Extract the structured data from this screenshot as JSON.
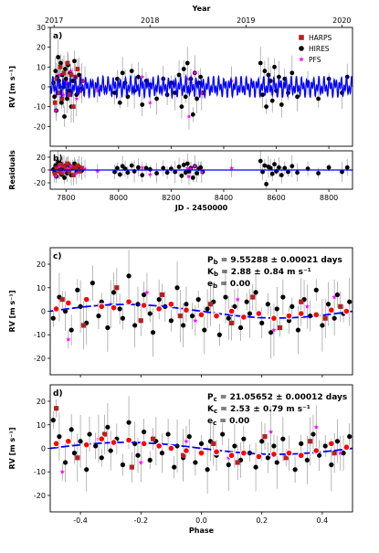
{
  "chart_data": [
    {
      "panel_label": "a)",
      "type": "line+scatter",
      "top_axis_label": "Year",
      "top_ticks": [
        "2017",
        "2018",
        "2019",
        "2020"
      ],
      "top_tick_positions_jd": [
        7754.5,
        8119.5,
        8484.5,
        8849.5
      ],
      "ylabel": "RV [m s⁻¹]",
      "xlim": [
        7740,
        8890
      ],
      "ylim": [
        -30,
        30
      ],
      "yticks": [
        -20,
        -10,
        0,
        10,
        20,
        30
      ],
      "legend": [
        "HARPS",
        "HIRES",
        "PFS"
      ],
      "legend_position": "top-right",
      "model": {
        "color": "#0000ff",
        "periods_days": [
          9.55288,
          21.05652
        ],
        "amplitudes_ms": [
          2.88,
          2.53
        ]
      },
      "series_points": [
        {
          "name": "HIRES",
          "x": [
            7752,
            7756,
            7760,
            7763,
            7767,
            7770,
            7773,
            7776,
            7780,
            7783,
            7786,
            7790,
            7794,
            7797,
            7800,
            7804,
            7808,
            7812,
            7816,
            7820,
            7826,
            7832,
            7840,
            7850,
            7860,
            7985,
            7995,
            8005,
            8015,
            8025,
            8035,
            8050,
            8060,
            8075,
            8090,
            8105,
            8120,
            8145,
            8170,
            8185,
            8200,
            8215,
            8230,
            8240,
            8248,
            8255,
            8262,
            8268,
            8275,
            8283,
            8290,
            8298,
            8305,
            8312,
            8320,
            8540,
            8548,
            8556,
            8562,
            8570,
            8578,
            8585,
            8593,
            8600,
            8610,
            8620,
            8632,
            8645,
            8660,
            8680,
            8720,
            8760,
            8800,
            8850,
            8870
          ],
          "y": [
            2,
            -5,
            8,
            -12,
            5,
            15,
            3,
            -3,
            12,
            -8,
            6,
            0,
            -15,
            9,
            4,
            -6,
            11,
            -2,
            7,
            -10,
            3,
            13,
            -4,
            6,
            -1,
            -3,
            4,
            -8,
            7,
            2,
            -5,
            8,
            -2,
            5,
            -9,
            3,
            1,
            -6,
            4,
            -4,
            2,
            -3,
            6,
            -10,
            9,
            -5,
            12,
            -2,
            4,
            -14,
            7,
            -6,
            2,
            5,
            -3,
            12,
            -4,
            8,
            -10,
            6,
            3,
            -7,
            10,
            -2,
            5,
            -9,
            4,
            -3,
            7,
            -5,
            2,
            -6,
            4,
            -3,
            5
          ]
        },
        {
          "name": "HARPS",
          "x": [
            7758,
            7764,
            7771,
            7778,
            7785,
            7792,
            7799,
            7806,
            7813,
            7820,
            7828,
            7836,
            7844,
            7852,
            7860
          ],
          "y": [
            -8,
            4,
            -3,
            10,
            -6,
            7,
            2,
            12,
            -4,
            6,
            -10,
            5,
            9,
            -2,
            3
          ]
        },
        {
          "name": "PFS",
          "x": [
            7762,
            7775,
            7790,
            7805,
            7818,
            7840,
            7872,
            7920,
            8090,
            8120,
            8262,
            8268,
            8275,
            8290,
            8316,
            8430
          ],
          "y": [
            -12,
            6,
            -4,
            2,
            8,
            -6,
            3,
            -2,
            5,
            -8,
            4,
            -15,
            2,
            7,
            -3,
            3
          ]
        }
      ]
    },
    {
      "panel_label": "b)",
      "type": "scatter",
      "xlabel": "JD - 2450000",
      "ylabel": "Residuals",
      "xlim": [
        7740,
        8890
      ],
      "ylim": [
        -30,
        30
      ],
      "yticks": [
        -20,
        0,
        20
      ],
      "xticks": [
        7800,
        8000,
        8200,
        8400,
        8600,
        8800
      ],
      "series_points": [
        {
          "name": "HIRES",
          "x": [
            7752,
            7756,
            7760,
            7763,
            7767,
            7770,
            7773,
            7776,
            7780,
            7783,
            7786,
            7790,
            7794,
            7797,
            7800,
            7804,
            7808,
            7812,
            7816,
            7820,
            7826,
            7832,
            7840,
            7850,
            7860,
            7985,
            7995,
            8005,
            8015,
            8025,
            8035,
            8050,
            8060,
            8075,
            8090,
            8105,
            8120,
            8145,
            8170,
            8185,
            8200,
            8215,
            8230,
            8240,
            8248,
            8255,
            8262,
            8268,
            8275,
            8283,
            8290,
            8298,
            8305,
            8312,
            8320,
            8540,
            8548,
            8556,
            8562,
            8570,
            8578,
            8585,
            8593,
            8600,
            8610,
            8620,
            8632,
            8645,
            8660,
            8680,
            8720,
            8760,
            8800,
            8850,
            8870
          ],
          "y": [
            1,
            -4,
            7,
            -10,
            4,
            12,
            2,
            -3,
            10,
            -7,
            5,
            0,
            -12,
            7,
            3,
            -5,
            9,
            -2,
            6,
            -8,
            3,
            10,
            -3,
            5,
            -1,
            -3,
            3,
            -7,
            6,
            2,
            -4,
            7,
            -2,
            4,
            -8,
            3,
            1,
            -5,
            3,
            -4,
            2,
            -3,
            5,
            -9,
            8,
            -4,
            10,
            -2,
            3,
            -12,
            6,
            -5,
            2,
            4,
            -3,
            14,
            -3,
            7,
            -22,
            5,
            3,
            -6,
            9,
            -2,
            4,
            -8,
            3,
            -3,
            6,
            -4,
            2,
            -5,
            4,
            -3,
            4
          ]
        },
        {
          "name": "HARPS",
          "x": [
            7758,
            7764,
            7771,
            7778,
            7785,
            7792,
            7799,
            7806,
            7813,
            7820,
            7828,
            7836,
            7844,
            7852,
            7860
          ],
          "y": [
            -6,
            3,
            -2,
            8,
            -5,
            6,
            2,
            10,
            -3,
            5,
            -8,
            4,
            7,
            -2,
            3
          ]
        },
        {
          "name": "PFS",
          "x": [
            7762,
            7775,
            7790,
            7805,
            7818,
            7840,
            7872,
            7920,
            8090,
            8120,
            8262,
            8268,
            8275,
            8290,
            8316,
            8430
          ],
          "y": [
            -10,
            5,
            -3,
            2,
            6,
            -5,
            2,
            -2,
            4,
            -7,
            3,
            -10,
            2,
            6,
            -3,
            3
          ]
        }
      ]
    },
    {
      "panel_label": "c)",
      "type": "phase-fold",
      "ylabel": "RV [m s⁻¹]",
      "xlim": [
        -0.5,
        0.5
      ],
      "ylim": [
        -27,
        27
      ],
      "yticks": [
        -20,
        -10,
        0,
        10,
        20
      ],
      "annotation": [
        "P_b = 9.55288 ± 0.00021 days",
        "K_b = 2.88 ± 0.84 m s⁻¹",
        "e_b = 0.00"
      ],
      "model": {
        "amplitude": 2.88,
        "phase_peak": -0.25
      },
      "binned": {
        "x": [
          -0.48,
          -0.44,
          -0.38,
          -0.33,
          -0.29,
          -0.24,
          -0.19,
          -0.14,
          -0.1,
          -0.05,
          0.0,
          0.05,
          0.1,
          0.14,
          0.19,
          0.24,
          0.29,
          0.33,
          0.38,
          0.43,
          0.48
        ],
        "y": [
          1.0,
          3.5,
          5.0,
          2.0,
          1.5,
          4.0,
          2.5,
          1.0,
          3.0,
          0.5,
          -1.5,
          -2.0,
          0.0,
          -2.5,
          -1.0,
          -3.0,
          -2.0,
          -1.0,
          -1.5,
          0.5,
          0.0
        ]
      },
      "series_points": [
        {
          "name": "HIRES",
          "x": [
            -0.49,
            -0.47,
            -0.45,
            -0.43,
            -0.41,
            -0.4,
            -0.38,
            -0.36,
            -0.34,
            -0.33,
            -0.31,
            -0.29,
            -0.27,
            -0.26,
            -0.24,
            -0.22,
            -0.21,
            -0.19,
            -0.17,
            -0.16,
            -0.14,
            -0.12,
            -0.1,
            -0.08,
            -0.06,
            -0.05,
            -0.03,
            -0.01,
            0.01,
            0.02,
            0.04,
            0.06,
            0.08,
            0.09,
            0.11,
            0.13,
            0.15,
            0.16,
            0.18,
            0.2,
            0.22,
            0.23,
            0.25,
            0.27,
            0.29,
            0.3,
            0.32,
            0.34,
            0.36,
            0.38,
            0.4,
            0.42,
            0.44,
            0.45,
            0.47,
            0.49
          ],
          "y": [
            -3,
            6,
            0,
            -8,
            9,
            2,
            -5,
            12,
            -2,
            4,
            -7,
            8,
            1,
            -3,
            15,
            -6,
            3,
            7,
            -1,
            -9,
            5,
            2,
            -4,
            10,
            -6,
            3,
            -2,
            5,
            -8,
            1,
            4,
            -10,
            6,
            -3,
            2,
            -7,
            4,
            -1,
            8,
            -5,
            3,
            -9,
            1,
            6,
            -4,
            2,
            -8,
            5,
            -2,
            9,
            -6,
            3,
            -3,
            7,
            -1,
            4
          ]
        },
        {
          "name": "HARPS",
          "x": [
            -0.46,
            -0.39,
            -0.28,
            -0.2,
            -0.13,
            -0.07,
            0.03,
            0.1,
            0.17,
            0.26,
            0.33,
            0.41,
            0.46
          ],
          "y": [
            5,
            -6,
            10,
            -4,
            7,
            -2,
            3,
            -5,
            6,
            -7,
            4,
            -3,
            2
          ]
        },
        {
          "name": "PFS",
          "x": [
            -0.44,
            -0.3,
            -0.18,
            -0.02,
            0.12,
            0.24,
            0.35,
            0.44
          ],
          "y": [
            -12,
            3,
            8,
            -4,
            5,
            -8,
            2,
            6
          ]
        }
      ]
    },
    {
      "panel_label": "d)",
      "type": "phase-fold",
      "xlabel": "Phase",
      "ylabel": "RV [m s⁻¹]",
      "xlim": [
        -0.5,
        0.5
      ],
      "ylim": [
        -27,
        27
      ],
      "yticks": [
        -20,
        -10,
        0,
        10,
        20
      ],
      "xticks": [
        -0.4,
        -0.2,
        0.0,
        0.2,
        0.4
      ],
      "annotation": [
        "P_c = 21.05652 ± 0.00012 days",
        "K_c = 2.53 ± 0.79 m s⁻¹",
        "e_c = 0.00"
      ],
      "model": {
        "amplitude": 2.53,
        "phase_peak": -0.25
      },
      "binned": {
        "x": [
          -0.48,
          -0.44,
          -0.38,
          -0.33,
          -0.29,
          -0.24,
          -0.19,
          -0.14,
          -0.1,
          -0.05,
          0.0,
          0.05,
          0.1,
          0.14,
          0.19,
          0.24,
          0.29,
          0.33,
          0.38,
          0.43,
          0.48
        ],
        "y": [
          2.0,
          3.0,
          1.5,
          4.0,
          2.5,
          3.5,
          2.0,
          1.0,
          0.0,
          -1.0,
          -2.0,
          -1.5,
          -3.0,
          -2.0,
          -3.5,
          -2.5,
          -2.0,
          -3.0,
          -1.0,
          2.0,
          0.5
        ]
      },
      "series_points": [
        {
          "name": "HIRES",
          "x": [
            -0.49,
            -0.47,
            -0.45,
            -0.43,
            -0.42,
            -0.4,
            -0.38,
            -0.37,
            -0.35,
            -0.33,
            -0.31,
            -0.3,
            -0.28,
            -0.26,
            -0.24,
            -0.22,
            -0.21,
            -0.19,
            -0.17,
            -0.15,
            -0.13,
            -0.11,
            -0.09,
            -0.08,
            -0.06,
            -0.04,
            -0.02,
            0.0,
            0.02,
            0.03,
            0.05,
            0.07,
            0.09,
            0.11,
            0.13,
            0.14,
            0.16,
            0.18,
            0.2,
            0.22,
            0.24,
            0.25,
            0.27,
            0.29,
            0.31,
            0.33,
            0.35,
            0.37,
            0.39,
            0.41,
            0.43,
            0.45,
            0.47,
            0.49
          ],
          "y": [
            12,
            5,
            -6,
            8,
            -2,
            3,
            -9,
            6,
            1,
            -4,
            9,
            -1,
            4,
            -7,
            11,
            2,
            -3,
            7,
            -5,
            3,
            -2,
            6,
            -8,
            1,
            -4,
            5,
            -6,
            2,
            -9,
            3,
            -3,
            6,
            -7,
            1,
            -5,
            4,
            -2,
            -8,
            3,
            -4,
            1,
            -6,
            4,
            -2,
            -9,
            2,
            -5,
            6,
            -3,
            1,
            -7,
            3,
            -2,
            5
          ]
        },
        {
          "name": "HARPS",
          "x": [
            -0.48,
            -0.41,
            -0.32,
            -0.23,
            -0.16,
            -0.06,
            0.04,
            0.12,
            0.21,
            0.28,
            0.36,
            0.44
          ],
          "y": [
            17,
            -4,
            6,
            -8,
            4,
            -3,
            2,
            -6,
            5,
            -4,
            3,
            -2
          ]
        },
        {
          "name": "PFS",
          "x": [
            -0.46,
            -0.34,
            -0.2,
            -0.05,
            0.09,
            0.23,
            0.38,
            0.46
          ],
          "y": [
            -10,
            4,
            -6,
            3,
            -4,
            7,
            9,
            -2
          ]
        }
      ]
    }
  ],
  "colors": {
    "HARPS": "#b22222",
    "HIRES": "#000000",
    "PFS": "#ff00ff",
    "model": "#0000ff",
    "binned_fill": "#ff0000",
    "errorbar": "#9a9a9a"
  }
}
